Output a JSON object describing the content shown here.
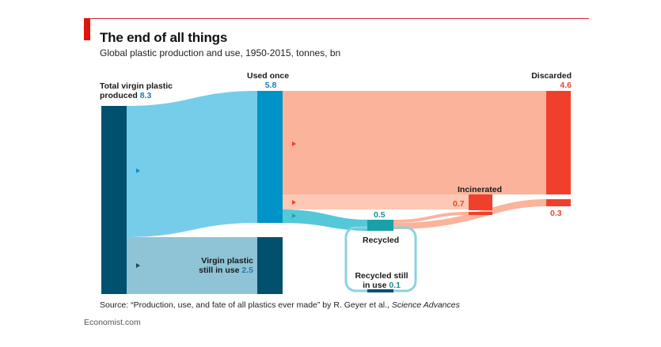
{
  "header": {
    "title": "The end of all things",
    "subtitle": "Global plastic production and use, 1950-2015, tonnes, bn"
  },
  "nodes": {
    "total": {
      "label_line1": "Total virgin plastic",
      "label_line2": "produced",
      "value": "8.3"
    },
    "used_once": {
      "label": "Used once",
      "value": "5.8"
    },
    "discarded": {
      "label": "Discarded",
      "value": "4.6",
      "value_recycled": "0.3"
    },
    "incinerated": {
      "label": "Incinerated",
      "value": "0.7"
    },
    "recycled": {
      "label": "Recycled",
      "value": "0.5"
    },
    "recycled_still": {
      "label_line1": "Recycled still",
      "label_line2": "in use",
      "value": "0.1"
    },
    "virgin_still": {
      "label_line1": "Virgin plastic",
      "label_line2": "still in use",
      "value": "2.5"
    }
  },
  "colors": {
    "dark_teal": "#00506e",
    "used_blue": "#0093c8",
    "flow_light_blue": "#76cdea",
    "flow_still_use": "#8ec4d6",
    "flow_salmon": "#fbb39b",
    "flow_salmon_light": "#fdc8b6",
    "discard_red": "#f0402c",
    "recycle_teal": "#1aa0a8",
    "recycle_flow": "#54c8d8"
  },
  "footer": {
    "source_prefix": "Source: “Production, use, and fate of all plastics ever made” by R. Geyer et al., ",
    "source_journal": "Science Advances",
    "credit": "Economist.com"
  }
}
